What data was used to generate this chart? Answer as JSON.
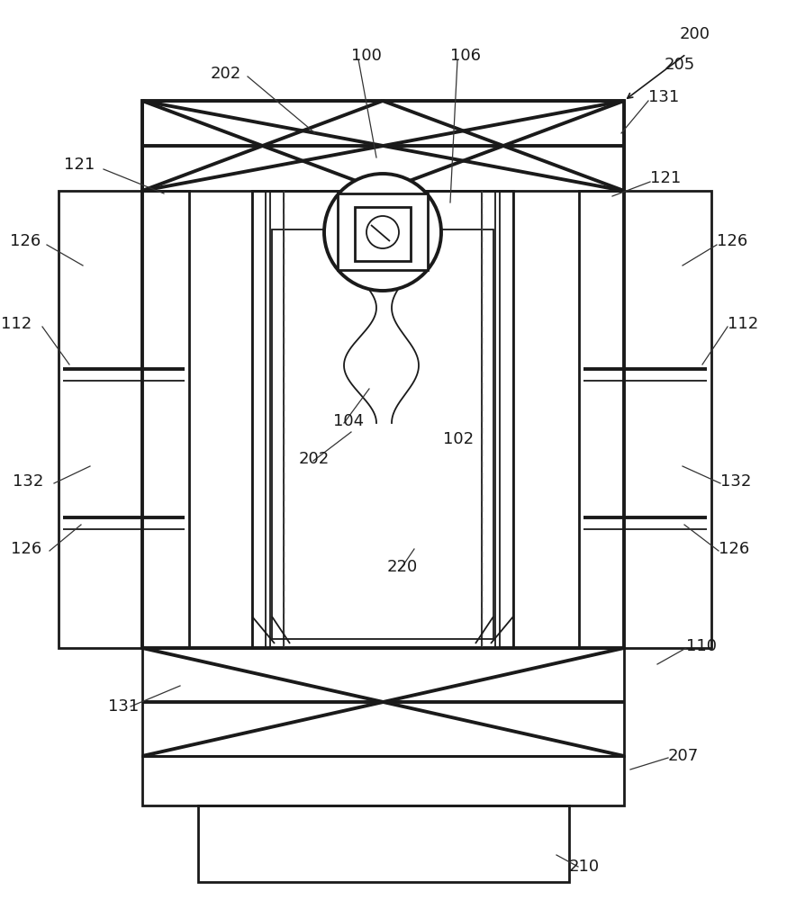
{
  "bg_color": "#ffffff",
  "line_color": "#1a1a1a",
  "label_color": "#1a1a1a",
  "fig_width": 8.95,
  "fig_height": 10.0
}
